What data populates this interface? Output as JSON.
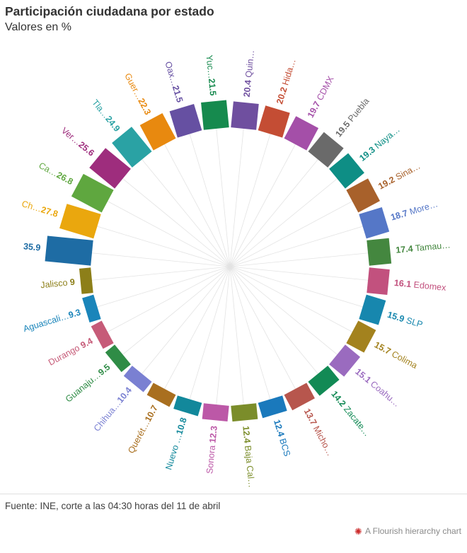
{
  "header": {
    "title": "Participación ciudadana por estado",
    "subtitle": "Valores en %"
  },
  "footer": {
    "source": "Fuente: INE, corte a las 04:30 horas del 11 de abril",
    "credit": "A Flourish hierarchy chart",
    "credit_icon_color": "#cc2b2b"
  },
  "chart_data": {
    "type": "bar",
    "variant": "radial",
    "title": "Participación ciudadana por estado",
    "subtitle": "Valores en %",
    "unit": "%",
    "direction": "clockwise-from-top",
    "start_angle_deg": 5.625,
    "angle_step_deg": 11.25,
    "spoke_color": "#e3e3e3",
    "value_range": [
      9,
      35.9
    ],
    "states": [
      {
        "name": "Quin…",
        "value": 20.4,
        "color": "#6F4F9F"
      },
      {
        "name": "Hida…",
        "value": 20.2,
        "color": "#C44D34"
      },
      {
        "name": "CDMX",
        "value": 19.7,
        "color": "#A44FA8"
      },
      {
        "name": "Puebla",
        "value": 19.5,
        "color": "#6A6A6A"
      },
      {
        "name": "Naya…",
        "value": 19.3,
        "color": "#0E8E85"
      },
      {
        "name": "Sina…",
        "value": 19.2,
        "color": "#A8612B"
      },
      {
        "name": "More…",
        "value": 18.7,
        "color": "#5577C7"
      },
      {
        "name": "Tamau…",
        "value": 17.4,
        "color": "#44873F"
      },
      {
        "name": "Edomex",
        "value": 16.1,
        "color": "#C2517E"
      },
      {
        "name": "SLP",
        "value": 15.9,
        "color": "#1787AE"
      },
      {
        "name": "Colima",
        "value": 15.7,
        "color": "#A3821E"
      },
      {
        "name": "Coahu…",
        "value": 15.1,
        "color": "#9A6BBF"
      },
      {
        "name": "Zacate…",
        "value": 14.2,
        "color": "#128A55"
      },
      {
        "name": "Micho…",
        "value": 13.7,
        "color": "#B7564D"
      },
      {
        "name": "BCS",
        "value": 12.4,
        "color": "#1A79BC"
      },
      {
        "name": "Baja Cal…",
        "value": 12.4,
        "color": "#7B8D2A"
      },
      {
        "name": "Sonora",
        "value": 12.3,
        "color": "#BC58A7"
      },
      {
        "name": "Nuevo …",
        "value": 10.8,
        "color": "#12889B"
      },
      {
        "name": "Querét…",
        "value": 10.7,
        "color": "#A96F1F"
      },
      {
        "name": "Chihua…",
        "value": 10.4,
        "color": "#7A80D2"
      },
      {
        "name": "Guanaju…",
        "value": 9.5,
        "color": "#2F8C46"
      },
      {
        "name": "Durango",
        "value": 9.4,
        "color": "#C65B78"
      },
      {
        "name": "Aguascali…",
        "value": 9.3,
        "color": "#1A85BA"
      },
      {
        "name": "Jalisco",
        "value": 9,
        "color": "#8D7F19"
      },
      {
        "name": "",
        "value": 35.9,
        "color": "#1E6CA4"
      },
      {
        "name": "Ch…",
        "value": 27.8,
        "color": "#EAA70E"
      },
      {
        "name": "Ca…",
        "value": 26.8,
        "color": "#5FA73F"
      },
      {
        "name": "Ver…",
        "value": 25.6,
        "color": "#9E2D7D"
      },
      {
        "name": "Tla…",
        "value": 24.9,
        "color": "#2AA2A4"
      },
      {
        "name": "Guer…",
        "value": 22.3,
        "color": "#E8890F"
      },
      {
        "name": "Oax…",
        "value": 21.5,
        "color": "#6650A2"
      },
      {
        "name": "Yuc…",
        "value": 21.5,
        "color": "#168A4E"
      }
    ]
  }
}
